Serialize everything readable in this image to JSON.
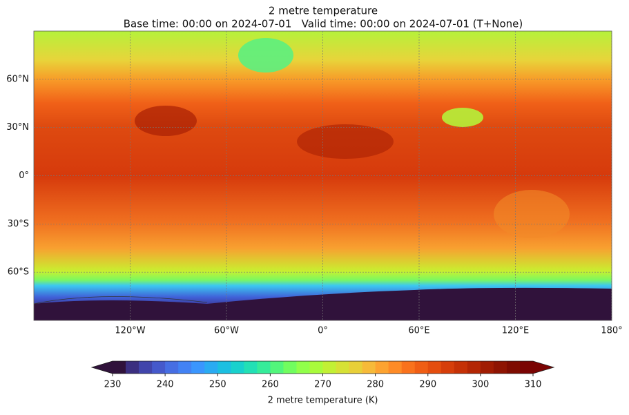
{
  "title": "2 metre temperature",
  "subtitle": "Base time: 00:00 on 2024-07-01   Valid time: 00:00 on 2024-07-01 (T+None)",
  "map": {
    "xlim": [
      -180,
      180
    ],
    "ylim": [
      -90,
      90
    ],
    "lon_ticks": [
      {
        "value": -120,
        "label": "120°W"
      },
      {
        "value": -60,
        "label": "60°W"
      },
      {
        "value": 0,
        "label": "0°"
      },
      {
        "value": 60,
        "label": "60°E"
      },
      {
        "value": 120,
        "label": "120°E"
      },
      {
        "value": 180,
        "label": "180°"
      }
    ],
    "lat_ticks": [
      {
        "value": 60,
        "label": "60°N"
      },
      {
        "value": 30,
        "label": "30°N"
      },
      {
        "value": 0,
        "label": "0°"
      },
      {
        "value": -30,
        "label": "30°S"
      },
      {
        "value": -60,
        "label": "60°S"
      }
    ],
    "grid": true
  },
  "colorbar": {
    "label": "2 metre temperature (K)",
    "range": [
      230,
      310
    ],
    "ticks": [
      230,
      240,
      250,
      260,
      270,
      280,
      290,
      300,
      310
    ],
    "colors": [
      "#30123b",
      "#3b2f80",
      "#4145ab",
      "#4559cb",
      "#466ee3",
      "#4282f4",
      "#3a96fe",
      "#2aabf2",
      "#1bbfe1",
      "#18d1cd",
      "#22e0b5",
      "#35ec9a",
      "#52f67b",
      "#71fd5f",
      "#91ff4a",
      "#a9fb3b",
      "#c2f034",
      "#d6e135",
      "#e8cf39",
      "#f6ba39",
      "#fda330",
      "#fe8b26",
      "#f9721c",
      "#f05e14",
      "#e44d0e",
      "#d63e0a",
      "#c53106",
      "#b32604",
      "#a01c02",
      "#8e1402",
      "#7e0c01",
      "#7a0403"
    ],
    "extend": "both"
  }
}
